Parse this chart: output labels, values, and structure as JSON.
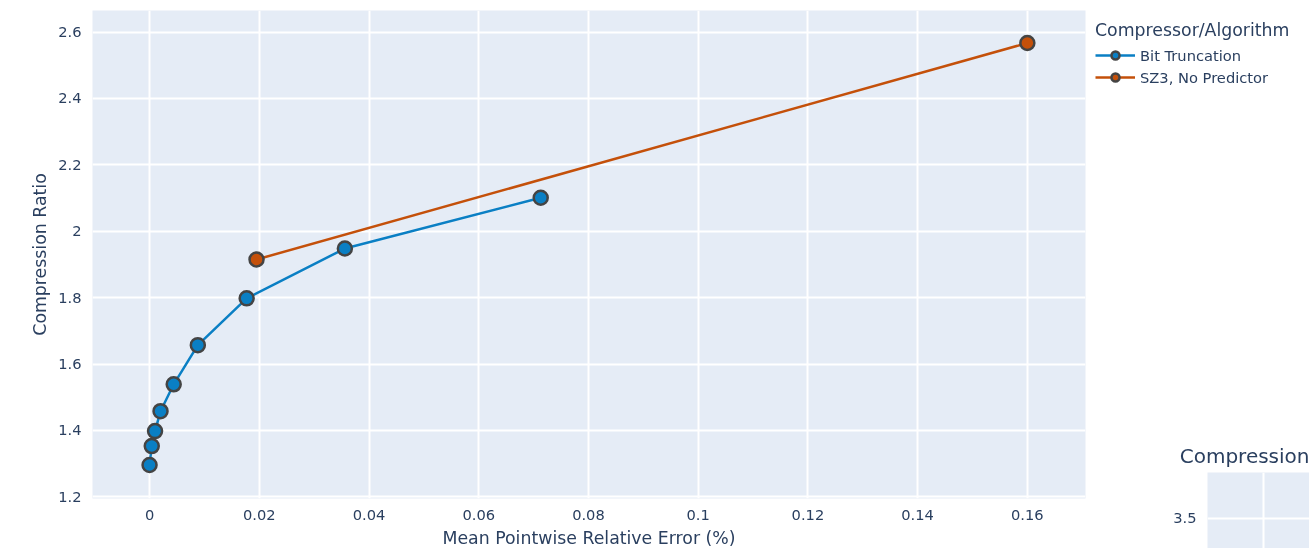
{
  "chart_data": [
    {
      "type": "line",
      "xlabel": "Mean Pointwise Relative Error (%)",
      "ylabel": "Compression Ratio",
      "legend_title": "Compressor/Algorithm",
      "legend": "top right",
      "grid": true,
      "marker": "circle",
      "line_style": "solid",
      "xlim": [
        -0.0104,
        0.1706
      ],
      "ylim": [
        1.195,
        2.665
      ],
      "xticks": [
        0,
        0.02,
        0.04,
        0.06,
        0.08,
        0.1,
        0.12,
        0.14,
        0.16
      ],
      "yticks": [
        1.2,
        1.4,
        1.6,
        1.8,
        2,
        2.2,
        2.4,
        2.6
      ],
      "series": [
        {
          "name": "Bit Truncation",
          "color": "#0a7fc4",
          "x": [
            0,
            0.0004,
            0.001,
            0.002,
            0.0044,
            0.0088,
            0.0177,
            0.0356,
            0.0713
          ],
          "values": [
            1.296,
            1.353,
            1.398,
            1.458,
            1.539,
            1.657,
            1.798,
            1.948,
            2.101
          ]
        },
        {
          "name": "SZ3, No Predictor",
          "color": "#c4500a",
          "x": [
            0.0195,
            0.16
          ],
          "values": [
            1.915,
            2.567
          ]
        }
      ]
    },
    {
      "type": "other",
      "title": "Compression",
      "annotations": [
        "3.5"
      ]
    }
  ]
}
